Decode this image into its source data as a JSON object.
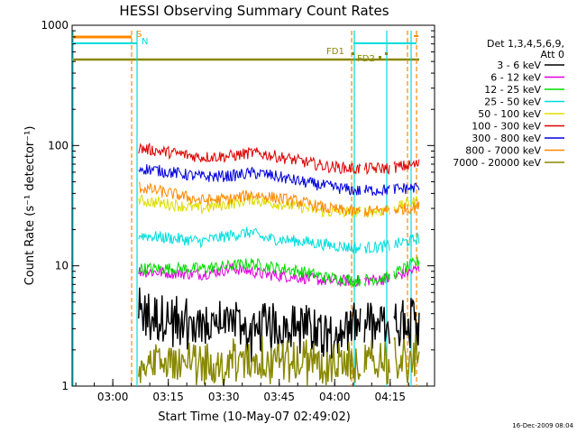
{
  "chart_data": {
    "type": "line",
    "title": "HESSI Observing Summary Count Rates",
    "xlabel": "Start Time (10-May-07 02:49:02)",
    "ylabel": "Count Rate (s⁻¹ detector⁻¹)",
    "y_scale": "log",
    "ylim": [
      1,
      1000
    ],
    "xlim": [
      "02:49",
      "04:27"
    ],
    "x_ticks": [
      "03:00",
      "03:15",
      "03:30",
      "03:45",
      "04:00",
      "04:15"
    ],
    "y_ticks": [
      "1",
      "10",
      "100",
      "1000"
    ],
    "legend_position": "right",
    "legend_header": [
      "Det 1,3,4,5,6,9,",
      "Att 0"
    ],
    "series": [
      {
        "name": "3 - 6 keV",
        "color": "#000000",
        "values": [
          [
            0.0,
            4.0
          ],
          [
            1.0,
            3.0
          ],
          [
            1.5,
            3.5
          ],
          [
            1.8,
            2.5
          ],
          [
            2.0,
            3.0
          ],
          [
            2.6,
            3.0
          ],
          [
            3.0,
            2.8
          ],
          [
            3.5,
            3.0
          ],
          [
            4.0,
            3.0
          ],
          [
            4.5,
            3.5
          ]
        ]
      },
      {
        "name": "6 - 12 keV",
        "color": "#dd00dd",
        "values": [
          [
            0.0,
            9.0
          ],
          [
            1.0,
            8.5
          ],
          [
            1.5,
            9.5
          ],
          [
            1.8,
            9.0
          ],
          [
            2.0,
            8.5
          ],
          [
            2.6,
            8.0
          ],
          [
            3.0,
            7.5
          ],
          [
            3.5,
            7.5
          ],
          [
            4.0,
            7.8
          ],
          [
            4.5,
            9.5
          ]
        ]
      },
      {
        "name": "12 - 25 keV",
        "color": "#00dd00",
        "values": [
          [
            0.0,
            9.5
          ],
          [
            1.0,
            9.5
          ],
          [
            1.5,
            10.0
          ],
          [
            1.8,
            10.5
          ],
          [
            2.0,
            10.0
          ],
          [
            2.6,
            9.0
          ],
          [
            3.0,
            8.0
          ],
          [
            3.5,
            7.5
          ],
          [
            4.0,
            8.0
          ],
          [
            4.5,
            11.0
          ]
        ]
      },
      {
        "name": "25 - 50 keV",
        "color": "#00dddd",
        "values": [
          [
            0.0,
            18.0
          ],
          [
            1.0,
            16.0
          ],
          [
            1.5,
            18.0
          ],
          [
            1.8,
            19.0
          ],
          [
            2.0,
            17.0
          ],
          [
            2.6,
            16.0
          ],
          [
            3.0,
            15.0
          ],
          [
            3.5,
            14.0
          ],
          [
            4.0,
            14.5
          ],
          [
            4.5,
            17.0
          ]
        ]
      },
      {
        "name": "50 - 100 keV",
        "color": "#dddd00",
        "values": [
          [
            0.0,
            35.0
          ],
          [
            1.0,
            30.0
          ],
          [
            1.5,
            33.0
          ],
          [
            1.8,
            36.0
          ],
          [
            2.0,
            34.0
          ],
          [
            2.6,
            31.0
          ],
          [
            3.0,
            28.0
          ],
          [
            3.5,
            28.0
          ],
          [
            4.0,
            29.0
          ],
          [
            4.5,
            35.0
          ]
        ]
      },
      {
        "name": "100 - 300 keV",
        "color": "#dd0000",
        "values": [
          [
            0.0,
            95.0
          ],
          [
            1.0,
            80.0
          ],
          [
            1.5,
            82.0
          ],
          [
            1.8,
            87.0
          ],
          [
            2.0,
            85.0
          ],
          [
            2.6,
            74.0
          ],
          [
            3.0,
            67.0
          ],
          [
            3.5,
            64.0
          ],
          [
            4.0,
            65.0
          ],
          [
            4.5,
            70.0
          ]
        ]
      },
      {
        "name": "300 - 800 keV",
        "color": "#0000dd",
        "values": [
          [
            0.0,
            65.0
          ],
          [
            1.0,
            55.0
          ],
          [
            1.5,
            56.0
          ],
          [
            1.8,
            59.0
          ],
          [
            2.0,
            58.0
          ],
          [
            2.6,
            50.0
          ],
          [
            3.0,
            46.0
          ],
          [
            3.5,
            42.0
          ],
          [
            4.0,
            43.0
          ],
          [
            4.5,
            45.0
          ]
        ]
      },
      {
        "name": "800 - 7000 keV",
        "color": "#ff8800",
        "values": [
          [
            0.0,
            45.0
          ],
          [
            1.0,
            35.0
          ],
          [
            1.5,
            36.0
          ],
          [
            1.8,
            39.0
          ],
          [
            2.0,
            38.0
          ],
          [
            2.6,
            34.0
          ],
          [
            3.0,
            30.0
          ],
          [
            3.5,
            28.0
          ],
          [
            4.0,
            29.0
          ],
          [
            4.5,
            31.0
          ]
        ]
      },
      {
        "name": "7000 - 20000 keV",
        "color": "#888800",
        "values": [
          [
            0.0,
            1.8
          ],
          [
            1.0,
            1.5
          ],
          [
            1.5,
            1.8
          ],
          [
            1.8,
            1.6
          ],
          [
            2.0,
            1.8
          ],
          [
            2.6,
            1.7
          ],
          [
            3.0,
            1.5
          ],
          [
            3.5,
            1.6
          ],
          [
            4.0,
            1.7
          ],
          [
            4.5,
            1.8
          ]
        ]
      }
    ],
    "annotations": [
      {
        "text": "S",
        "color": "#ff8800"
      },
      {
        "text": "N",
        "color": "#00dddd"
      },
      {
        "text": "FD1",
        "color": "#888800"
      },
      {
        "text": "FD2",
        "color": "#888800"
      }
    ]
  },
  "footer_date": "16-Dec-2009 08:04"
}
